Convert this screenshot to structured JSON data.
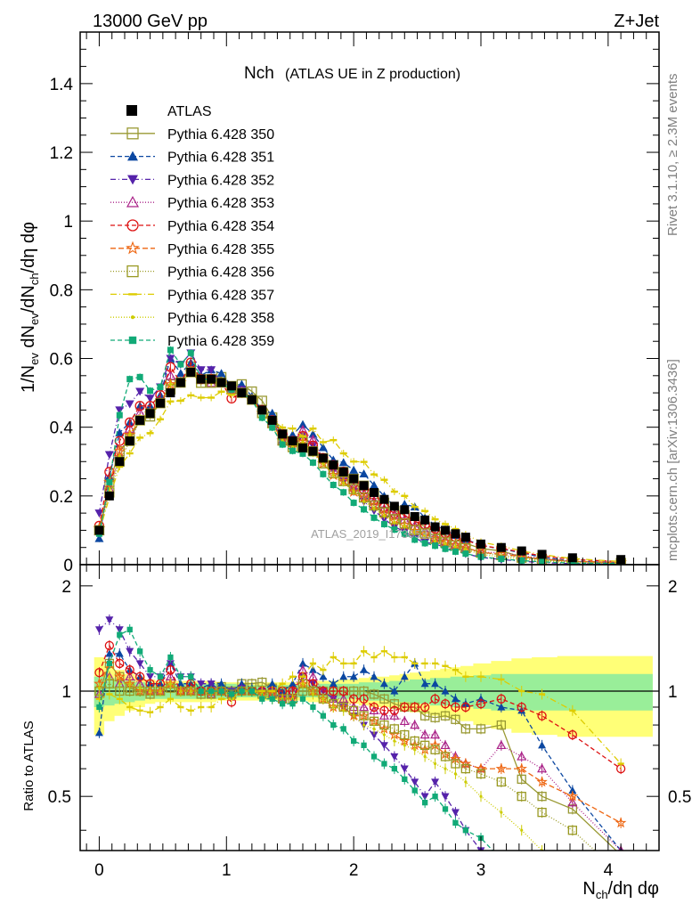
{
  "header": {
    "energy_label": "13000 GeV pp",
    "process_label": "Z+Jet",
    "plot_title": "Nch",
    "plot_subtitle": "(ATLAS UE in Z production)",
    "rivet_label": "Rivet 3.1.10, ≥ 2.3M events",
    "mcplots_label": "mcplots.cern.ch [arXiv:1306.3436]",
    "analysis_label": "ATLAS_2019_I1736531"
  },
  "chart_data": [
    {
      "type": "line",
      "title": "Nch (ATLAS UE in Z production)",
      "xlabel": "N_ch/dη dφ",
      "ylabel": "1/N_ev dN_ev/dN_ch/dη dφ",
      "xlim": [
        -0.15,
        4.4
      ],
      "ylim": [
        0,
        1.55
      ],
      "yticks": [
        "0",
        "0.2",
        "0.4",
        "0.6",
        "0.8",
        "1",
        "1.2",
        "1.4"
      ],
      "legend": "top-left",
      "data_series": {
        "name": "ATLAS",
        "x": [
          0.0,
          0.08,
          0.16,
          0.24,
          0.32,
          0.4,
          0.48,
          0.56,
          0.64,
          0.72,
          0.8,
          0.88,
          0.96,
          1.04,
          1.12,
          1.2,
          1.28,
          1.36,
          1.44,
          1.52,
          1.6,
          1.68,
          1.76,
          1.84,
          1.92,
          2.0,
          2.08,
          2.16,
          2.24,
          2.32,
          2.4,
          2.48,
          2.56,
          2.64,
          2.72,
          2.8,
          2.88,
          3.0,
          3.16,
          3.32,
          3.48,
          3.72,
          4.1
        ],
        "y": [
          0.1,
          0.2,
          0.3,
          0.36,
          0.42,
          0.44,
          0.47,
          0.5,
          0.53,
          0.56,
          0.54,
          0.54,
          0.53,
          0.52,
          0.5,
          0.48,
          0.45,
          0.42,
          0.38,
          0.36,
          0.34,
          0.33,
          0.31,
          0.29,
          0.27,
          0.25,
          0.23,
          0.21,
          0.19,
          0.17,
          0.16,
          0.14,
          0.13,
          0.11,
          0.1,
          0.09,
          0.08,
          0.06,
          0.05,
          0.04,
          0.03,
          0.02,
          0.015
        ]
      },
      "series": [
        {
          "name": "Pythia 6.428 350",
          "color": "#999933",
          "marker": "square-open",
          "dash": "solid",
          "ratio": [
            1.0,
            1.2,
            1.1,
            1.02,
            1.0,
            0.98,
            1.0,
            1.05,
            1.0,
            1.03,
            1.0,
            1.0,
            1.03,
            1.0,
            1.05,
            1.05,
            1.06,
            1.02,
            1.0,
            1.0,
            1.0,
            1.0,
            1.0,
            1.0,
            1.0,
            1.0,
            1.0,
            0.98,
            0.95,
            0.92,
            0.9,
            0.9,
            0.85,
            0.84,
            0.85,
            0.83,
            0.78,
            0.78,
            0.8,
            0.56,
            0.5,
            0.46,
            0.34
          ]
        },
        {
          "name": "Pythia 6.428 351",
          "color": "#0b47a1",
          "marker": "triangle-up",
          "dash": "5,3",
          "ratio": [
            0.76,
            1.28,
            1.28,
            1.15,
            1.1,
            1.05,
            1.05,
            1.2,
            1.05,
            1.05,
            1.02,
            1.05,
            1.05,
            1.0,
            1.05,
            1.02,
            1.0,
            1.05,
            1.0,
            1.05,
            1.2,
            1.15,
            1.1,
            1.05,
            1.1,
            1.1,
            1.15,
            1.1,
            1.05,
            1.0,
            1.1,
            1.2,
            1.05,
            1.05,
            1.0,
            0.95,
            0.92,
            0.95,
            0.9,
            0.88,
            0.7,
            0.52,
            0.35
          ]
        },
        {
          "name": "Pythia 6.428 352",
          "color": "#5522aa",
          "marker": "triangle-down",
          "dash": "6,3,1,3",
          "ratio": [
            1.5,
            1.6,
            1.5,
            1.3,
            1.2,
            1.1,
            1.1,
            1.2,
            1.1,
            1.1,
            1.05,
            1.05,
            1.0,
            1.0,
            1.02,
            1.0,
            1.0,
            1.0,
            0.95,
            0.95,
            1.1,
            1.05,
            1.0,
            0.95,
            0.9,
            0.85,
            0.8,
            0.75,
            0.7,
            0.65,
            0.6,
            0.55,
            0.5,
            0.55,
            0.5,
            0.45,
            0.4,
            0.35,
            0.3,
            0.25,
            0.2,
            0.15,
            0.1
          ]
        },
        {
          "name": "Pythia 6.428 353",
          "color": "#aa2288",
          "marker": "triangle-up-open",
          "dash": "1,2",
          "ratio": [
            0.98,
            1.1,
            1.05,
            1.1,
            1.05,
            1.0,
            1.0,
            1.1,
            1.0,
            1.0,
            1.0,
            0.98,
            1.0,
            0.98,
            1.0,
            1.0,
            1.0,
            0.98,
            0.95,
            1.0,
            1.15,
            1.1,
            1.0,
            0.95,
            0.95,
            0.9,
            0.9,
            0.88,
            0.85,
            0.85,
            0.82,
            0.8,
            0.75,
            0.75,
            0.7,
            0.65,
            0.62,
            0.6,
            0.7,
            0.65,
            0.6,
            0.48,
            0.35
          ]
        },
        {
          "name": "Pythia 6.428 354",
          "color": "#dd1111",
          "marker": "circle-open",
          "dash": "5,3",
          "ratio": [
            1.13,
            1.35,
            1.2,
            1.15,
            1.1,
            1.05,
            1.05,
            1.15,
            1.0,
            1.05,
            1.0,
            1.0,
            1.0,
            0.93,
            1.0,
            1.0,
            1.0,
            1.0,
            1.0,
            1.0,
            1.1,
            1.05,
            1.0,
            1.0,
            1.0,
            0.95,
            0.95,
            0.9,
            0.88,
            0.88,
            0.9,
            0.9,
            0.9,
            0.95,
            0.92,
            0.9,
            0.9,
            0.92,
            0.95,
            0.9,
            0.85,
            0.75,
            0.6
          ]
        },
        {
          "name": "Pythia 6.428 355",
          "color": "#ee6611",
          "marker": "star-open",
          "dash": "6,3",
          "ratio": [
            1.05,
            1.2,
            1.1,
            1.05,
            1.0,
            1.0,
            1.0,
            1.05,
            1.0,
            1.0,
            1.0,
            1.0,
            1.0,
            0.98,
            1.0,
            1.0,
            0.98,
            0.98,
            0.95,
            0.95,
            1.05,
            1.0,
            0.95,
            0.9,
            0.9,
            0.85,
            0.85,
            0.82,
            0.78,
            0.75,
            0.72,
            0.7,
            0.68,
            0.7,
            0.66,
            0.64,
            0.62,
            0.6,
            0.6,
            0.6,
            0.55,
            0.5,
            0.42
          ]
        },
        {
          "name": "Pythia 6.428 356",
          "color": "#999922",
          "marker": "square-open",
          "dash": "1,2",
          "ratio": [
            1.0,
            1.05,
            1.0,
            1.0,
            1.0,
            1.0,
            1.0,
            1.02,
            1.0,
            1.0,
            0.98,
            0.98,
            1.0,
            0.98,
            1.0,
            1.0,
            0.98,
            0.98,
            0.95,
            0.95,
            1.05,
            1.0,
            0.95,
            0.92,
            0.9,
            0.88,
            0.85,
            0.82,
            0.8,
            0.78,
            0.75,
            0.72,
            0.7,
            0.68,
            0.65,
            0.62,
            0.6,
            0.58,
            0.55,
            0.5,
            0.45,
            0.4,
            0.3
          ]
        },
        {
          "name": "Pythia 6.428 357",
          "color": "#ddcc00",
          "marker": "dash",
          "dash": "7,3,1,3",
          "ratio": [
            0.95,
            0.98,
            0.95,
            0.9,
            0.88,
            0.87,
            0.9,
            0.95,
            0.9,
            0.88,
            0.9,
            0.9,
            0.95,
            0.95,
            1.0,
            1.0,
            1.0,
            1.0,
            1.05,
            1.1,
            1.1,
            1.2,
            1.15,
            1.25,
            1.2,
            1.2,
            1.3,
            1.25,
            1.3,
            1.25,
            1.25,
            1.2,
            1.2,
            1.2,
            1.18,
            1.15,
            1.1,
            1.1,
            1.08,
            1.0,
            0.98,
            0.88,
            0.62
          ]
        },
        {
          "name": "Pythia 6.428 358",
          "color": "#cccc00",
          "marker": "dot",
          "dash": "1,2",
          "ratio": [
            1.02,
            1.1,
            1.05,
            1.05,
            1.02,
            1.0,
            1.0,
            1.05,
            1.0,
            1.0,
            1.0,
            0.98,
            1.0,
            0.98,
            1.0,
            1.0,
            0.98,
            0.95,
            0.95,
            0.95,
            1.05,
            0.98,
            0.95,
            0.9,
            0.88,
            0.85,
            0.8,
            0.78,
            0.75,
            0.72,
            0.7,
            0.68,
            0.65,
            0.62,
            0.6,
            0.58,
            0.55,
            0.5,
            0.45,
            0.4,
            0.35,
            0.3,
            0.25
          ]
        },
        {
          "name": "Pythia 6.428 359",
          "color": "#11aa77",
          "marker": "square-small",
          "dash": "5,3",
          "ratio": [
            0.9,
            1.2,
            1.45,
            1.5,
            1.3,
            1.15,
            1.1,
            1.25,
            1.1,
            1.1,
            1.0,
            1.0,
            1.0,
            0.98,
            1.0,
            1.0,
            0.95,
            0.95,
            0.92,
            0.92,
            0.95,
            0.9,
            0.85,
            0.8,
            0.78,
            0.72,
            0.7,
            0.65,
            0.62,
            0.6,
            0.56,
            0.52,
            0.48,
            0.5,
            0.46,
            0.42,
            0.4,
            0.38,
            0.33,
            0.3,
            0.27,
            0.23,
            0.2
          ]
        }
      ]
    },
    {
      "type": "line",
      "xlabel": "N_ch/dη dφ",
      "ylabel": "Ratio to ATLAS",
      "xlim": [
        -0.15,
        4.4
      ],
      "ylim": [
        0.35,
        2.3
      ],
      "yticks": [
        "0.5",
        "1",
        "2"
      ],
      "xticks": [
        "0",
        "1",
        "2",
        "3",
        "4"
      ],
      "reference": 1,
      "uncertainty_inner": [
        0.1,
        0.09,
        0.08,
        0.07,
        0.06,
        0.05,
        0.05,
        0.05,
        0.05,
        0.05,
        0.05,
        0.05,
        0.05,
        0.05,
        0.04,
        0.04,
        0.04,
        0.04,
        0.04,
        0.04,
        0.04,
        0.04,
        0.05,
        0.05,
        0.05,
        0.05,
        0.06,
        0.06,
        0.06,
        0.07,
        0.07,
        0.08,
        0.08,
        0.09,
        0.09,
        0.1,
        0.1,
        0.11,
        0.12,
        0.12,
        0.12,
        0.12,
        0.12
      ],
      "uncertainty_outer": [
        0.25,
        0.18,
        0.15,
        0.12,
        0.1,
        0.08,
        0.07,
        0.07,
        0.07,
        0.07,
        0.07,
        0.07,
        0.06,
        0.06,
        0.06,
        0.06,
        0.06,
        0.06,
        0.06,
        0.06,
        0.06,
        0.07,
        0.07,
        0.07,
        0.08,
        0.08,
        0.09,
        0.1,
        0.1,
        0.11,
        0.12,
        0.13,
        0.14,
        0.15,
        0.16,
        0.17,
        0.18,
        0.2,
        0.22,
        0.24,
        0.25,
        0.26,
        0.26
      ]
    }
  ]
}
